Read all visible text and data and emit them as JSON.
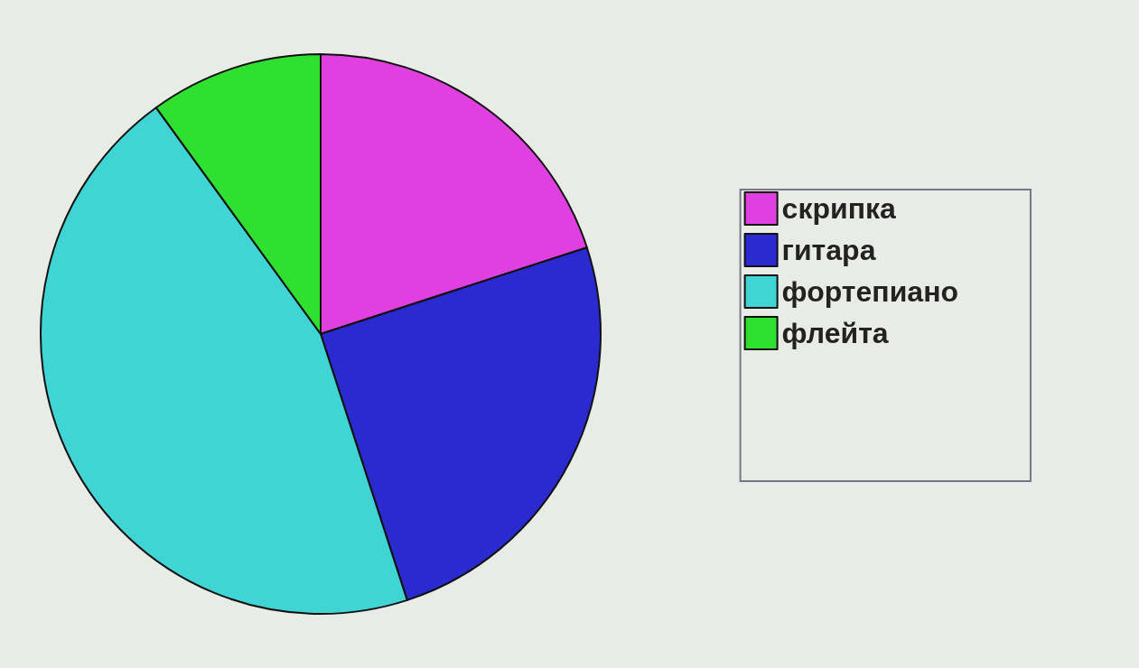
{
  "chart_data": {
    "type": "pie",
    "categories": [
      "скрипка",
      "гитара",
      "фортепиано",
      "флейта"
    ],
    "values": [
      20,
      25,
      45,
      10
    ],
    "colors": [
      "#e040e0",
      "#2a2ad0",
      "#40d4d4",
      "#30e030"
    ],
    "legend": "right"
  }
}
